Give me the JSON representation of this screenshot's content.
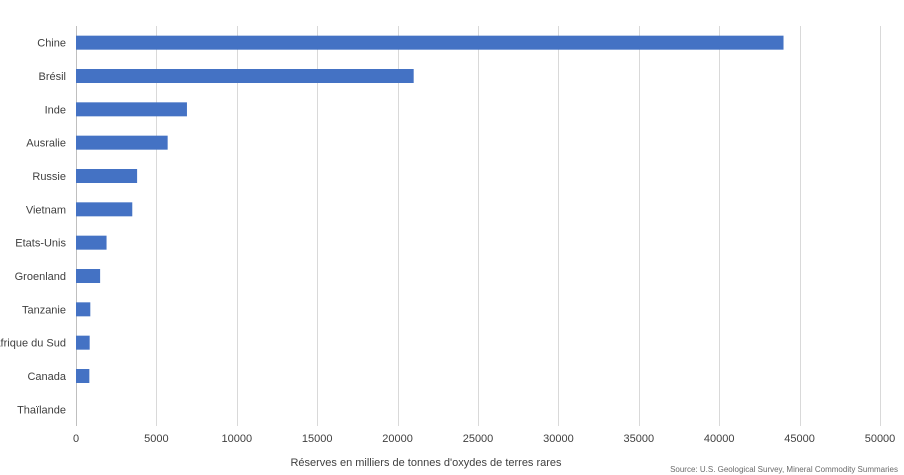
{
  "chart_data": {
    "type": "bar",
    "orientation": "horizontal",
    "categories": [
      "Chine",
      "Brésil",
      "Inde",
      "Ausralie",
      "Russie",
      "Vietnam",
      "Etats-Unis",
      "Groenland",
      "Tanzanie",
      "Afrique du Sud",
      "Canada",
      "Thaïlande"
    ],
    "values": [
      44000,
      21000,
      6900,
      5700,
      3800,
      3500,
      1900,
      1500,
      890,
      850,
      830,
      0
    ],
    "xlabel": "Réserves en milliers de tonnes d'oxydes de terres rares",
    "ylabel": "",
    "xlim": [
      0,
      50000
    ],
    "xticks": [
      "0",
      "5000",
      "10000",
      "15000",
      "20000",
      "25000",
      "30000",
      "35000",
      "40000",
      "45000",
      "50000"
    ],
    "grid": true,
    "bar_color": "#4472c4",
    "source_note": "Source: U.S. Geological Survey, Mineral Commodity Summaries"
  }
}
